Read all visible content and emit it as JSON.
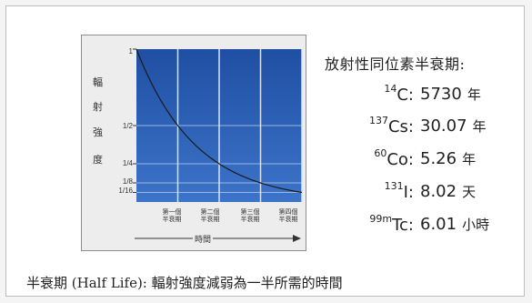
{
  "diagram": {
    "y_axis_label_chars": [
      "輻",
      "射",
      "強",
      "度"
    ],
    "y_ticks": [
      {
        "label": "1",
        "value": 1
      },
      {
        "label": "1/2",
        "value": 0.5
      },
      {
        "label": "1/4",
        "value": 0.25
      },
      {
        "label": "1/8",
        "value": 0.125
      },
      {
        "label": "1/16",
        "value": 0.0625
      }
    ],
    "x_ticks": [
      {
        "line1": "第一個",
        "line2": "半衰期"
      },
      {
        "line1": "第二個",
        "line2": "半衰期"
      },
      {
        "line1": "第三個",
        "line2": "半衰期"
      },
      {
        "line1": "第四個",
        "line2": "半衰期"
      }
    ],
    "x_axis_label": "時間",
    "colors": {
      "plot_bg": "#1f4fa3",
      "grid": "#9bb6e0",
      "curve": "#1a1a1a",
      "frame_bg": "#ededed"
    }
  },
  "isotopes": {
    "title": "放射性同位素半衰期:",
    "items": [
      {
        "mass": "14",
        "element": "C:",
        "value": "5730",
        "unit": "年"
      },
      {
        "mass": "137",
        "element": "Cs:",
        "value": "30.07",
        "unit": "年"
      },
      {
        "mass": "60",
        "element": "Co:",
        "value": "5.26",
        "unit": "年"
      },
      {
        "mass": "131",
        "element": "I:",
        "value": "8.02",
        "unit": "天"
      },
      {
        "mass": "99m",
        "element": "Tc:",
        "value": "6.01",
        "unit": "小時"
      }
    ]
  },
  "footnote": "半衰期 (Half Life): 輻射強度減弱為一半所需的時間"
}
